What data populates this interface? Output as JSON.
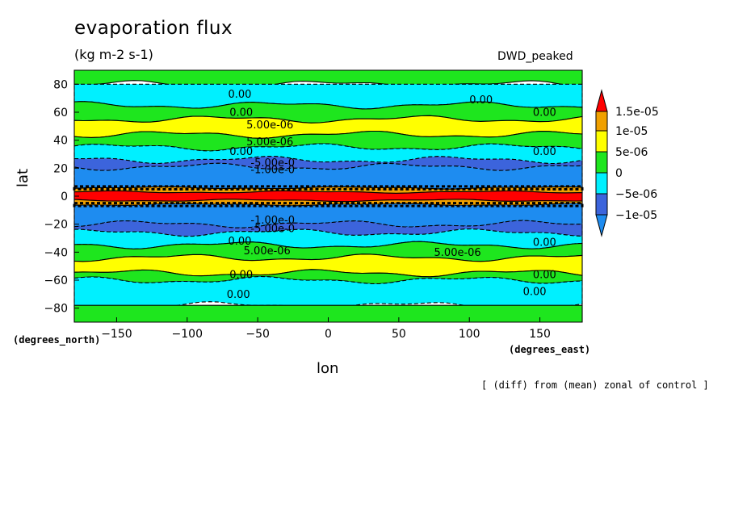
{
  "title": "evaporation flux",
  "units": "(kg m-2 s-1)",
  "run_label": "DWD_peaked",
  "footnote": "[ (diff) from (mean) zonal of control ]",
  "colors": {
    "lt_m1e05": "#1e8cf0",
    "m1e05_m5e06": "#3c64dc",
    "m5e06_0": "#00f0ff",
    "zero_5e06": "#1ee61e",
    "5e06_1e05": "#ffff00",
    "1e05_1_5e05": "#f0a000",
    "gt_1_5e05": "#ff0000"
  },
  "chart_data": {
    "type": "heatmap",
    "xlabel": "lon",
    "ylabel": "lat",
    "x_units": "(degrees_east)",
    "y_units": "(degrees_north)",
    "xlim": [
      -180,
      180
    ],
    "ylim": [
      -90,
      90
    ],
    "x_ticks": [
      -150,
      -100,
      -50,
      0,
      50,
      100,
      150
    ],
    "y_ticks": [
      80,
      60,
      40,
      20,
      0,
      -20,
      -40,
      -60,
      -80
    ],
    "colorbar": {
      "labels": [
        "1.5e-05",
        "1e-05",
        "5e-06",
        "0",
        "-5e-06",
        "-1e-05"
      ],
      "levels": [
        -1e-05,
        -5e-06,
        0,
        5e-06,
        1e-05,
        1.5e-05
      ]
    },
    "latitude_bands": [
      {
        "lat": [
          80,
          90
        ],
        "range": "0 to 5e-06"
      },
      {
        "lat": [
          65,
          80
        ],
        "range": "-5e-06 to 0"
      },
      {
        "lat": [
          55,
          65
        ],
        "range": "0 to 5e-06"
      },
      {
        "lat": [
          44,
          55
        ],
        "range": "5e-06 to 1e-05"
      },
      {
        "lat": [
          35,
          44
        ],
        "range": "0 to 5e-06"
      },
      {
        "lat": [
          26,
          35
        ],
        "range": "-5e-06 to 0"
      },
      {
        "lat": [
          21,
          26
        ],
        "range": "-1e-05 to -5e-06"
      },
      {
        "lat": [
          6,
          21
        ],
        "range": "< -1e-05"
      },
      {
        "lat": [
          3,
          6
        ],
        "range": "1e-05 to 1.5e-05"
      },
      {
        "lat": [
          -3,
          3
        ],
        "range": "> 1.5e-05"
      },
      {
        "lat": [
          -6,
          -3
        ],
        "range": "1e-05 to 1.5e-05"
      },
      {
        "lat": [
          -20,
          -6
        ],
        "range": "< -1e-05"
      },
      {
        "lat": [
          -26,
          -20
        ],
        "range": "-1e-05 to -5e-06"
      },
      {
        "lat": [
          -35,
          -26
        ],
        "range": "-5e-06 to 0"
      },
      {
        "lat": [
          -44,
          -35
        ],
        "range": "0 to 5e-06"
      },
      {
        "lat": [
          -55,
          -44
        ],
        "range": "5e-06 to 1e-05"
      },
      {
        "lat": [
          -60,
          -55
        ],
        "range": "0 to 5e-06"
      },
      {
        "lat": [
          -78,
          -60
        ],
        "range": "-5e-06 to 0"
      },
      {
        "lat": [
          -90,
          -78
        ],
        "range": "0 to 5e-06"
      }
    ],
    "contour_labels": [
      {
        "text": "0.00",
        "lon": -71,
        "lat": 71
      },
      {
        "text": "0.00",
        "lon": 100,
        "lat": 67
      },
      {
        "text": "0.00",
        "lon": -70,
        "lat": 58
      },
      {
        "text": "0.00",
        "lon": 145,
        "lat": 58
      },
      {
        "text": "5.00e-06",
        "lon": -58,
        "lat": 49
      },
      {
        "text": "5.00e-06",
        "lon": -58,
        "lat": 37
      },
      {
        "text": "0.00",
        "lon": -70,
        "lat": 30
      },
      {
        "text": "0.00",
        "lon": 145,
        "lat": 30
      },
      {
        "text": "-5.00e-0",
        "lon": -55,
        "lat": 22
      },
      {
        "text": "-1.00e-0",
        "lon": -55,
        "lat": 17
      },
      {
        "text": "-1.00e-0",
        "lon": -55,
        "lat": -19
      },
      {
        "text": "-5.00e-0",
        "lon": -55,
        "lat": -25
      },
      {
        "text": "0.00",
        "lon": -71,
        "lat": -34
      },
      {
        "text": "0.00",
        "lon": 145,
        "lat": -35
      },
      {
        "text": "5.00e-06",
        "lon": -60,
        "lat": -41
      },
      {
        "text": "5.00e-06",
        "lon": 75,
        "lat": -42
      },
      {
        "text": "0.00",
        "lon": -70,
        "lat": -58
      },
      {
        "text": "0.00",
        "lon": 145,
        "lat": -58
      },
      {
        "text": "0.00",
        "lon": -72,
        "lat": -72
      },
      {
        "text": "0.00",
        "lon": 138,
        "lat": -70
      }
    ]
  }
}
